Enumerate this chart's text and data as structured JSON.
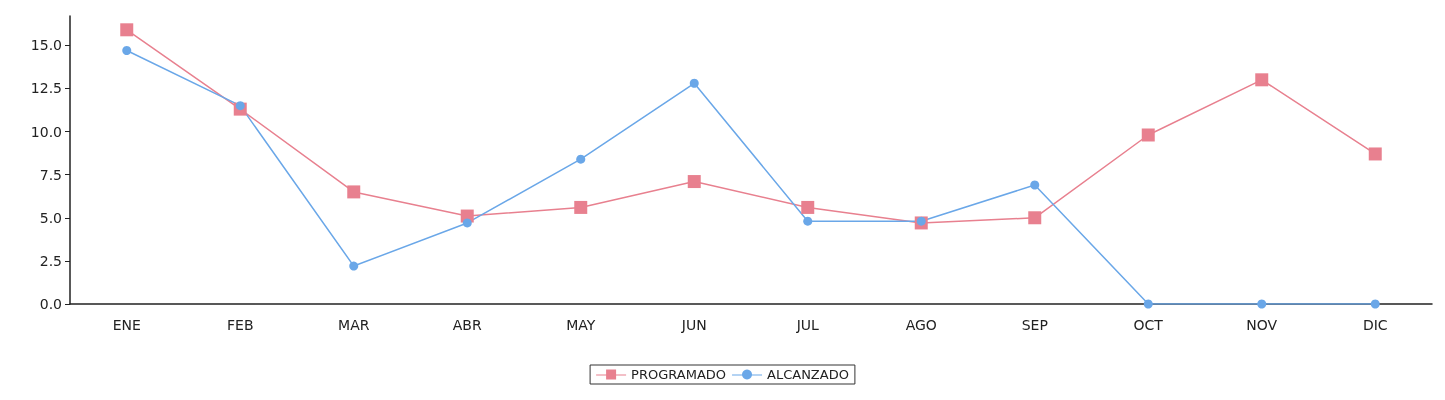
{
  "chart_data": {
    "type": "line",
    "categories": [
      "ENE",
      "FEB",
      "MAR",
      "ABR",
      "MAY",
      "JUN",
      "JUL",
      "AGO",
      "SEP",
      "OCT",
      "NOV",
      "DIC"
    ],
    "series": [
      {
        "name": "PROGRAMADO",
        "color": "#e8808f",
        "marker": "square",
        "values": [
          15.9,
          11.3,
          6.5,
          5.1,
          5.6,
          7.1,
          5.6,
          4.7,
          5.0,
          9.8,
          13.0,
          8.7
        ]
      },
      {
        "name": "ALCANZADO",
        "color": "#6aa7e8",
        "marker": "circle",
        "values": [
          14.7,
          11.5,
          2.2,
          4.7,
          8.4,
          12.8,
          4.8,
          4.8,
          6.9,
          0,
          0,
          0
        ]
      }
    ],
    "ylim": [
      0,
      16.7
    ],
    "yticks": [
      {
        "value": 0,
        "label": "0.0"
      },
      {
        "value": 2.5,
        "label": "2.5"
      },
      {
        "value": 5,
        "label": "5.0"
      },
      {
        "value": 7.5,
        "label": "7.5"
      },
      {
        "value": 10,
        "label": "10.0"
      },
      {
        "value": 12.5,
        "label": "12.5"
      },
      {
        "value": 15,
        "label": "15.0"
      }
    ],
    "grid": false,
    "legend": "bottom"
  }
}
